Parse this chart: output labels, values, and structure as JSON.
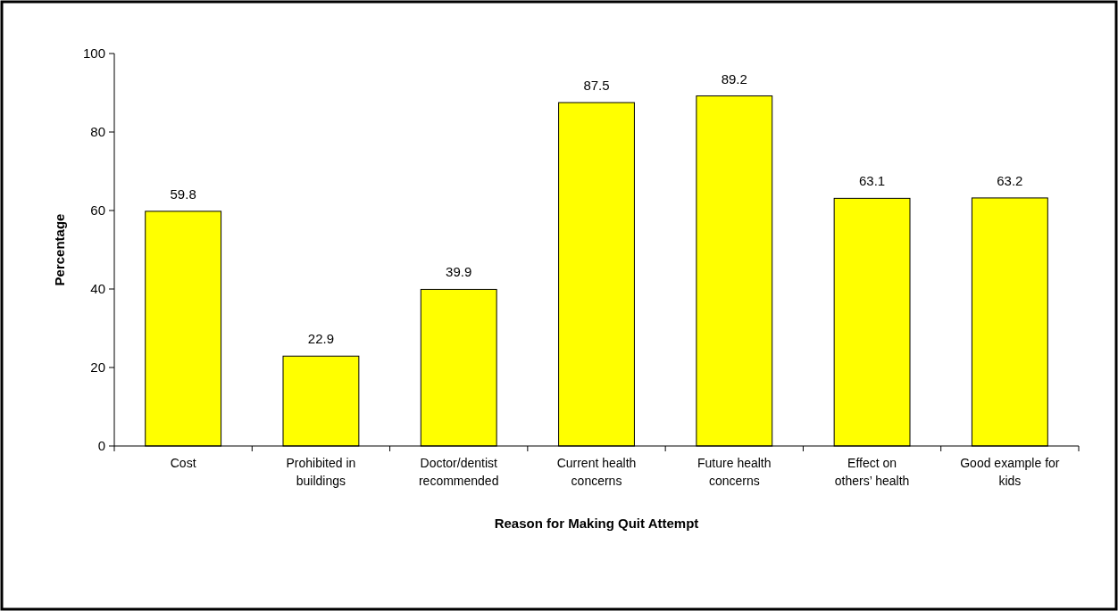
{
  "chart_data": {
    "type": "bar",
    "xlabel": "Reason for Making Quit Attempt",
    "ylabel": "Percentage",
    "categories": [
      "Cost",
      "Prohibited in buildings",
      "Doctor/dentist recommended",
      "Current health concerns",
      "Future health concerns",
      "Effect on others’ health",
      "Good example for kids"
    ],
    "values": [
      59.8,
      22.9,
      39.9,
      87.5,
      89.2,
      63.1,
      63.2
    ],
    "color": "#ffff00",
    "ylim": [
      0,
      100
    ],
    "yticks": [
      0,
      20,
      40,
      60,
      80,
      100
    ],
    "grid": false,
    "data_labels": true
  }
}
